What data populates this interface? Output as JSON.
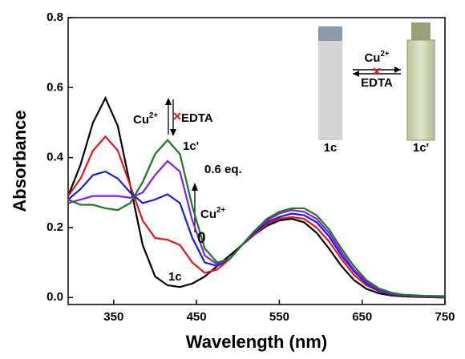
{
  "chart_data": {
    "type": "line",
    "x_label": "Wavelength (nm)",
    "y_label": "Absorbance",
    "x": [
      295,
      310,
      325,
      340,
      355,
      370,
      385,
      400,
      415,
      430,
      445,
      460,
      475,
      490,
      505,
      520,
      535,
      550,
      565,
      580,
      595,
      610,
      625,
      640,
      655,
      670,
      685,
      700,
      725,
      750
    ],
    "series": [
      {
        "color": "#000000",
        "values": [
          0.29,
          0.38,
          0.5,
          0.57,
          0.49,
          0.32,
          0.15,
          0.06,
          0.035,
          0.03,
          0.04,
          0.06,
          0.09,
          0.12,
          0.15,
          0.18,
          0.205,
          0.22,
          0.225,
          0.215,
          0.185,
          0.14,
          0.09,
          0.05,
          0.025,
          0.012,
          0.006,
          0.003,
          0.001,
          0
        ]
      },
      {
        "color": "#e8141c",
        "values": [
          0.29,
          0.34,
          0.42,
          0.46,
          0.42,
          0.32,
          0.22,
          0.17,
          0.165,
          0.15,
          0.1,
          0.07,
          0.08,
          0.11,
          0.15,
          0.18,
          0.21,
          0.225,
          0.23,
          0.225,
          0.2,
          0.16,
          0.11,
          0.065,
          0.035,
          0.018,
          0.009,
          0.005,
          0.002,
          0.001
        ]
      },
      {
        "color": "#1a1ae6",
        "values": [
          0.28,
          0.31,
          0.35,
          0.36,
          0.34,
          0.3,
          0.27,
          0.28,
          0.295,
          0.27,
          0.17,
          0.1,
          0.09,
          0.11,
          0.15,
          0.185,
          0.215,
          0.23,
          0.24,
          0.235,
          0.215,
          0.175,
          0.12,
          0.075,
          0.04,
          0.02,
          0.01,
          0.006,
          0.003,
          0.002
        ]
      },
      {
        "color": "#8a1ae6",
        "values": [
          0.27,
          0.28,
          0.29,
          0.29,
          0.29,
          0.285,
          0.3,
          0.35,
          0.39,
          0.36,
          0.22,
          0.12,
          0.095,
          0.11,
          0.15,
          0.19,
          0.22,
          0.24,
          0.25,
          0.245,
          0.225,
          0.185,
          0.13,
          0.08,
          0.045,
          0.023,
          0.012,
          0.007,
          0.004,
          0.003
        ]
      },
      {
        "color": "#1a7a1a",
        "values": [
          0.28,
          0.265,
          0.265,
          0.255,
          0.25,
          0.27,
          0.33,
          0.41,
          0.45,
          0.41,
          0.26,
          0.14,
          0.1,
          0.11,
          0.15,
          0.19,
          0.225,
          0.245,
          0.255,
          0.255,
          0.235,
          0.195,
          0.14,
          0.09,
          0.05,
          0.026,
          0.014,
          0.008,
          0.005,
          0.004
        ]
      }
    ],
    "xlim": [
      295,
      750
    ],
    "ylim": [
      -0.02,
      0.8
    ],
    "xticks": [
      350,
      450,
      550,
      650,
      750
    ],
    "yticks": [
      {
        "value": 0,
        "label": "0.0"
      },
      0.2,
      0.4,
      0.6,
      0.8
    ],
    "annotations": [
      {
        "text": "Cu",
        "sup": "2+"
      },
      {
        "text": "EDTA"
      },
      {
        "text": "1c'"
      },
      {
        "text": "0.6 eq."
      },
      {
        "text": "Cu",
        "sup": "2+"
      },
      {
        "text": "0"
      },
      {
        "text": "1c"
      }
    ],
    "inset": {
      "left_label": "1c",
      "right_label": "1c'",
      "forward": {
        "text": "Cu",
        "sup": "2+"
      },
      "reverse": "EDTA"
    }
  }
}
